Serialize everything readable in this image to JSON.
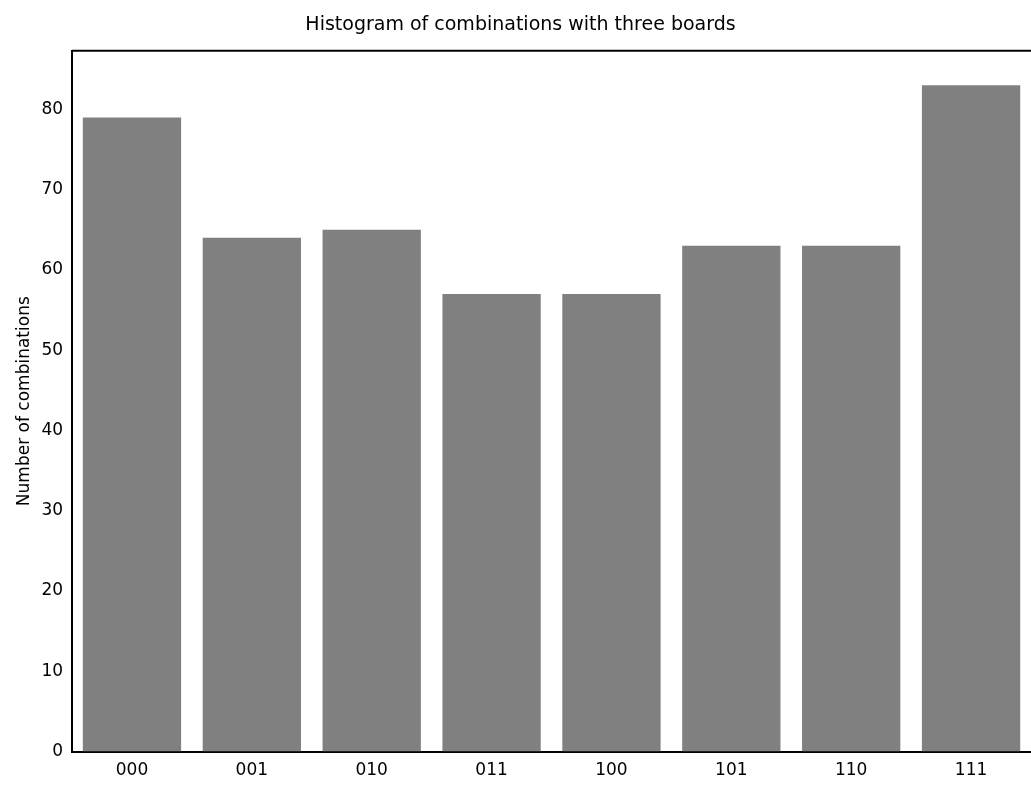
{
  "chart_data": {
    "type": "bar",
    "title": "Histogram of combinations with three boards",
    "ylabel": "Number of combinations",
    "categories": [
      "000",
      "001",
      "010",
      "011",
      "100",
      "101",
      "110",
      "111"
    ],
    "values": [
      79,
      64,
      65,
      57,
      57,
      63,
      63,
      83
    ],
    "color": "#808080",
    "ylim": [
      0,
      87.3
    ],
    "yticks": [
      0,
      10,
      20,
      30,
      40,
      50,
      60,
      70,
      80
    ]
  }
}
